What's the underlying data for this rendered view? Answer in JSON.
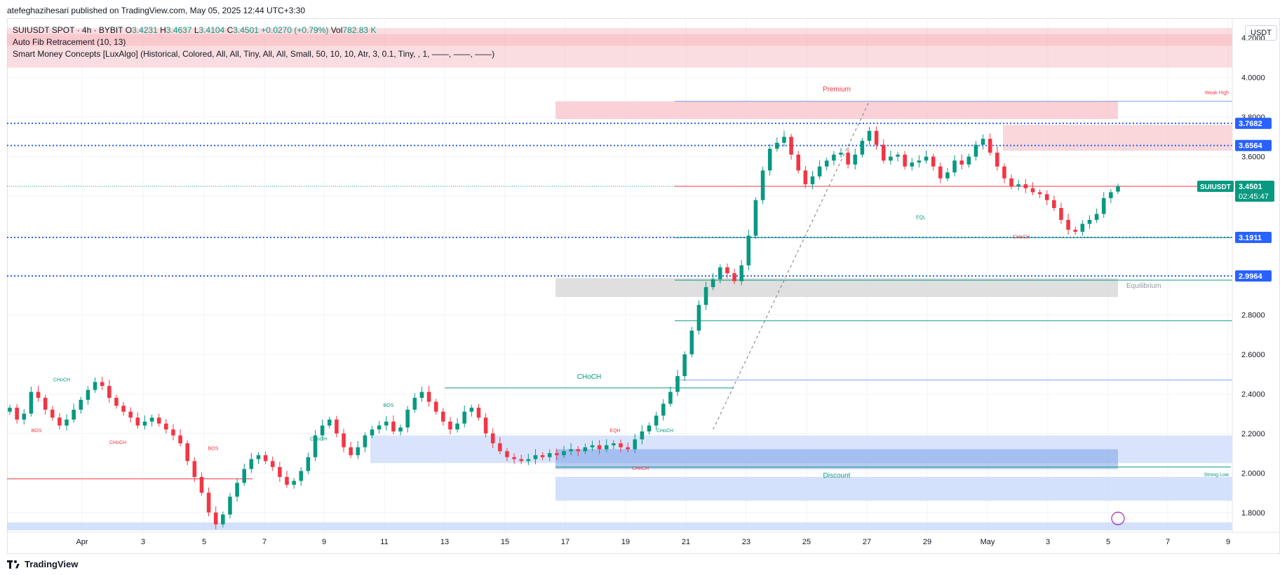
{
  "header": {
    "publisher_line": "atefeghazihesari published on TradingView.com, May 05, 2025 12:44 UTC+3:30"
  },
  "legend": {
    "symbol_line": "SUIUSDT SPOT · 4h · BYBIT",
    "o_label": "O",
    "o_value": "3.4231",
    "h_label": "H",
    "h_value": "3.4637",
    "l_label": "L",
    "l_value": "3.4104",
    "c_label": "C",
    "c_value": "3.4501",
    "change": "+0.0270 (+0.79%)",
    "vol_label": "Vol",
    "vol_value": "782.83 K",
    "indicator1": "Auto Fib Retracement (10, 13)",
    "indicator2": "Smart Money Concepts [LuxAlgo] (Historical, Colored, All, All, Tiny, All, All, Small, 50, 10, 10, Atr, 3, 0.1, Tiny, , 1, ——, ——, ——)"
  },
  "price_scale": {
    "currency": "USDT",
    "ticks": [
      "4.2000",
      "4.0000",
      "3.8000",
      "3.6000",
      "2.8000",
      "2.6000",
      "2.4000",
      "2.2000",
      "2.0000",
      "1.8000"
    ],
    "tag_3768": "3.7682",
    "tag_3656": "3.6564",
    "tag_3191": "3.1911",
    "tag_2996": "2.9964",
    "current_symbol": "SUIUSDT",
    "current_price": "3.4501",
    "countdown": "02:45:47"
  },
  "time_scale": [
    "Apr",
    "3",
    "5",
    "7",
    "9",
    "11",
    "13",
    "15",
    "17",
    "19",
    "21",
    "23",
    "25",
    "27",
    "29",
    "May",
    "3",
    "5",
    "7",
    "9"
  ],
  "annotations": {
    "premium": "Premium",
    "equilibrium": "Equilibrium",
    "discount": "Discount",
    "weak_high": "Weak High",
    "strong_low": "Strong Low",
    "choch_big": "CHoCH",
    "eql": "EQL",
    "eqh": "EQH",
    "choch_small": "CHoCH",
    "bos": "BOS"
  },
  "footer": {
    "brand": "TradingView"
  },
  "colors": {
    "up": "#089981",
    "down": "#f23645",
    "blue": "#2962ff",
    "premium_zone": "#f7c6cc",
    "discount_zone": "#c9d9fb",
    "equilibrium_zone": "#dcdcdc"
  },
  "chart_data": {
    "type": "candlestick",
    "symbol": "SUIUSDT",
    "timeframe": "4h",
    "exchange": "BYBIT",
    "ylim": [
      1.7,
      4.3
    ],
    "x_axis": [
      "Apr",
      "3",
      "5",
      "7",
      "9",
      "11",
      "13",
      "15",
      "17",
      "19",
      "21",
      "23",
      "25",
      "27",
      "29",
      "May",
      "3",
      "5",
      "7",
      "9"
    ],
    "horizontal_levels": [
      3.7682,
      3.6564,
      3.4501,
      3.1911,
      2.9964
    ],
    "last": {
      "open": 3.4231,
      "high": 3.4637,
      "low": 3.4104,
      "close": 3.4501,
      "change": 0.027,
      "change_pct": 0.79,
      "volume": "782.83 K"
    },
    "closes": [
      2.33,
      2.27,
      2.3,
      2.41,
      2.38,
      2.32,
      2.28,
      2.24,
      2.27,
      2.32,
      2.37,
      2.42,
      2.46,
      2.44,
      2.38,
      2.34,
      2.31,
      2.28,
      2.24,
      2.26,
      2.28,
      2.25,
      2.22,
      2.19,
      2.15,
      2.06,
      1.98,
      1.9,
      1.8,
      1.74,
      1.79,
      1.88,
      1.95,
      2.02,
      2.07,
      2.09,
      2.06,
      2.03,
      1.98,
      1.94,
      1.96,
      2.01,
      2.08,
      2.19,
      2.24,
      2.27,
      2.2,
      2.13,
      2.09,
      2.13,
      2.19,
      2.22,
      2.24,
      2.26,
      2.21,
      2.23,
      2.32,
      2.38,
      2.41,
      2.36,
      2.31,
      2.26,
      2.22,
      2.25,
      2.31,
      2.33,
      2.28,
      2.2,
      2.15,
      2.11,
      2.08,
      2.07,
      2.06,
      2.07,
      2.09,
      2.08,
      2.1,
      2.09,
      2.11,
      2.12,
      2.11,
      2.13,
      2.14,
      2.12,
      2.14,
      2.15,
      2.13,
      2.12,
      2.17,
      2.21,
      2.24,
      2.29,
      2.35,
      2.41,
      2.49,
      2.6,
      2.72,
      2.85,
      2.94,
      2.98,
      3.04,
      3.01,
      2.97,
      3.05,
      3.2,
      3.38,
      3.53,
      3.64,
      3.67,
      3.7,
      3.61,
      3.53,
      3.46,
      3.5,
      3.55,
      3.58,
      3.61,
      3.62,
      3.56,
      3.61,
      3.68,
      3.73,
      3.66,
      3.58,
      3.6,
      3.61,
      3.55,
      3.57,
      3.58,
      3.6,
      3.55,
      3.49,
      3.52,
      3.58,
      3.56,
      3.6,
      3.66,
      3.69,
      3.62,
      3.55,
      3.49,
      3.45,
      3.46,
      3.44,
      3.42,
      3.41,
      3.38,
      3.34,
      3.28,
      3.23,
      3.22,
      3.26,
      3.28,
      3.31,
      3.39,
      3.42,
      3.4501
    ]
  }
}
